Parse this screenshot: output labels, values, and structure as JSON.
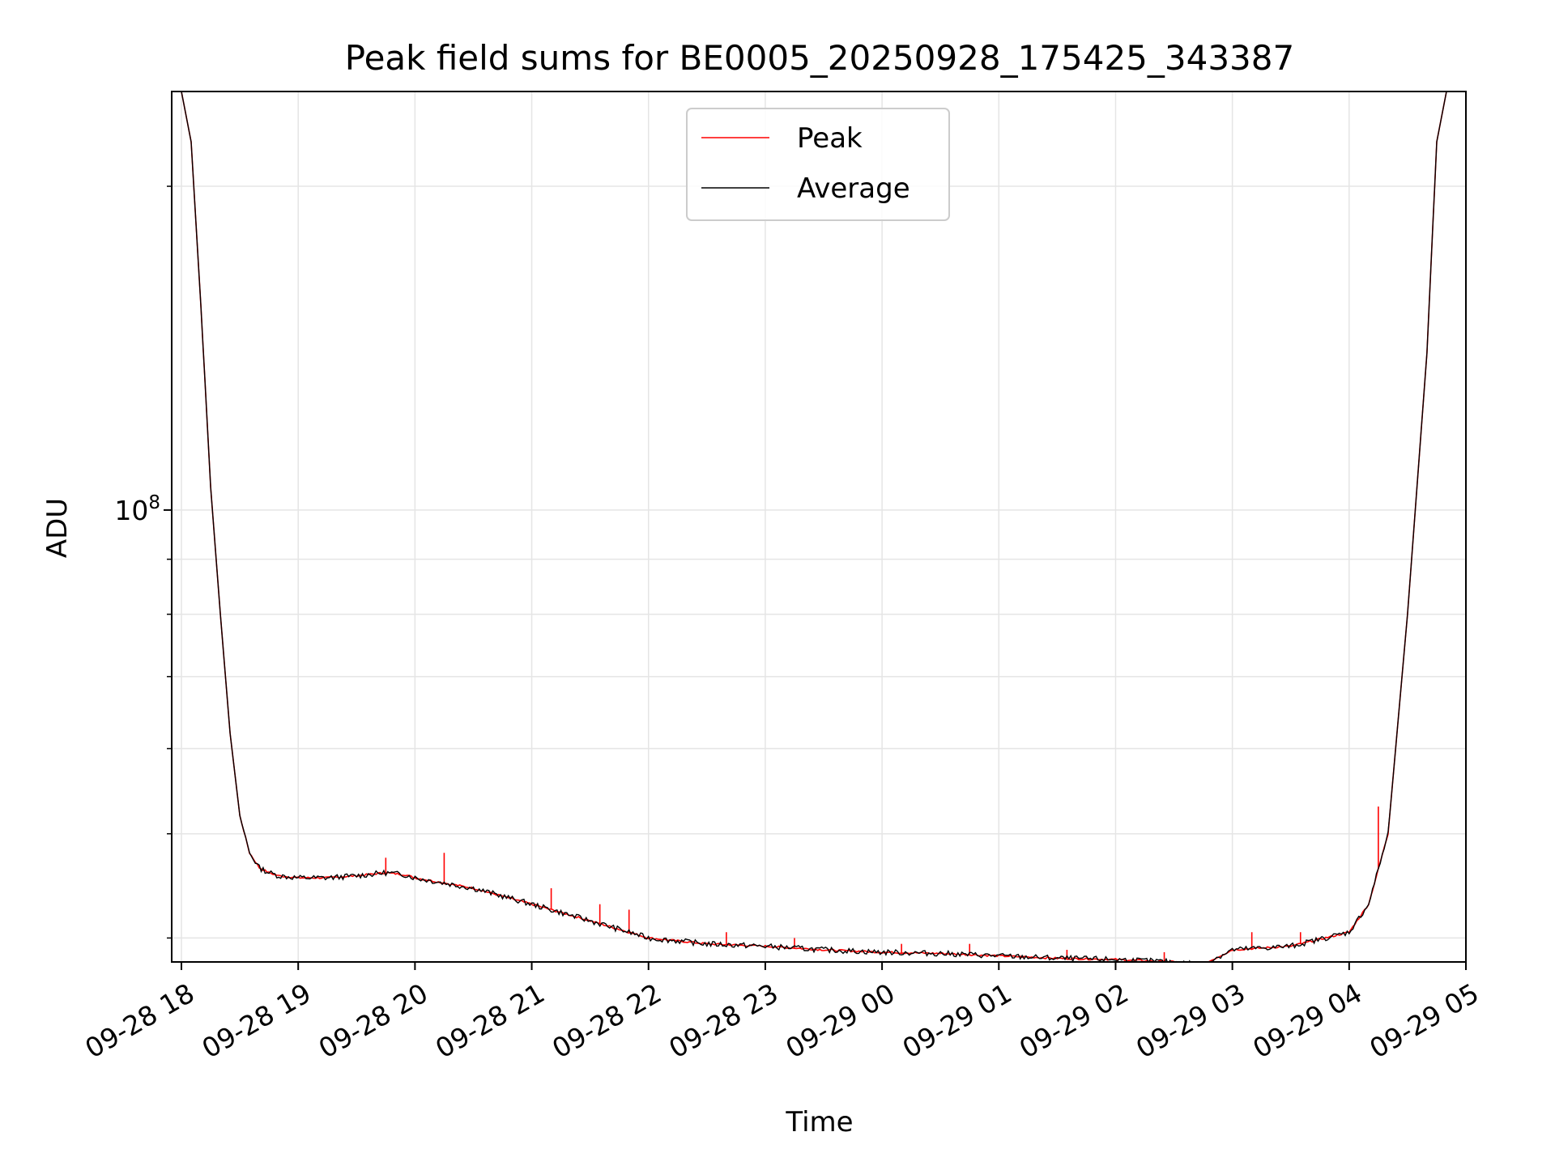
{
  "chart_data": {
    "type": "line",
    "title": "Peak field sums for BE0005_20250928_175425_343387",
    "xlabel": "Time",
    "ylabel": "ADU",
    "y_scale": "log",
    "ylim": [
      38000000.0,
      245000000.0
    ],
    "xlim": [
      "2025-09-28 17:55",
      "2025-09-29 05:00"
    ],
    "grid": true,
    "legend_position": "upper center",
    "x_ticks": [
      "09-28 18",
      "09-28 19",
      "09-28 20",
      "09-28 21",
      "09-28 22",
      "09-28 23",
      "09-29 00",
      "09-29 01",
      "09-29 02",
      "09-29 03",
      "09-29 04",
      "09-29 05"
    ],
    "y_tick_major": {
      "base": "10",
      "exponent": "8",
      "value": 100000000.0
    },
    "y_tick_minor": [
      40000000.0,
      50000000.0,
      60000000.0,
      70000000.0,
      80000000.0,
      90000000.0,
      200000000.0
    ],
    "series": [
      {
        "name": "Peak",
        "color": "#ff0000",
        "x": [
          "2025-09-28 18:00",
          "2025-09-28 18:05",
          "2025-09-28 18:10",
          "2025-09-28 18:15",
          "2025-09-28 18:20",
          "2025-09-28 18:25",
          "2025-09-28 18:30",
          "2025-09-28 18:35",
          "2025-09-28 18:40",
          "2025-09-28 18:45",
          "2025-09-28 18:50",
          "2025-09-28 19:00",
          "2025-09-28 19:15",
          "2025-09-28 19:30",
          "2025-09-28 19:45",
          "2025-09-28 19:55",
          "2025-09-28 20:00",
          "2025-09-28 20:30",
          "2025-09-28 21:00",
          "2025-09-28 21:30",
          "2025-09-28 22:00",
          "2025-09-28 22:30",
          "2025-09-28 23:00",
          "2025-09-28 23:30",
          "2025-09-29 00:00",
          "2025-09-29 00:30",
          "2025-09-29 01:00",
          "2025-09-29 01:30",
          "2025-09-29 02:00",
          "2025-09-29 02:30",
          "2025-09-29 02:45",
          "2025-09-29 03:00",
          "2025-09-29 03:30",
          "2025-09-29 04:00",
          "2025-09-29 04:10",
          "2025-09-29 04:20",
          "2025-09-29 04:30",
          "2025-09-29 04:40",
          "2025-09-29 04:45",
          "2025-09-29 04:50"
        ],
        "values": [
          245000000.0,
          220000000.0,
          155000000.0,
          105000000.0,
          80000000.0,
          62000000.0,
          52000000.0,
          48000000.0,
          46500000.0,
          46000000.0,
          45700000.0,
          45500000.0,
          45500000.0,
          45700000.0,
          46000000.0,
          45800000.0,
          45500000.0,
          44500000.0,
          43000000.0,
          41500000.0,
          40000000.0,
          39500000.0,
          39300000.0,
          39000000.0,
          38800000.0,
          38700000.0,
          38500000.0,
          38300000.0,
          38200000.0,
          38000000.0,
          37800000.0,
          39000000.0,
          39300000.0,
          40500000.0,
          43000000.0,
          50000000.0,
          80000000.0,
          140000000.0,
          220000000.0,
          245000000.0
        ],
        "spikes": [
          {
            "t": "2025-09-28 19:45",
            "value": 47500000.0
          },
          {
            "t": "2025-09-28 20:15",
            "value": 48000000.0
          },
          {
            "t": "2025-09-28 21:10",
            "value": 44500000.0
          },
          {
            "t": "2025-09-28 21:35",
            "value": 43000000.0
          },
          {
            "t": "2025-09-28 21:50",
            "value": 42500000.0
          },
          {
            "t": "2025-09-28 22:40",
            "value": 40500000.0
          },
          {
            "t": "2025-09-28 23:15",
            "value": 40000000.0
          },
          {
            "t": "2025-09-29 00:10",
            "value": 39500000.0
          },
          {
            "t": "2025-09-29 00:45",
            "value": 39500000.0
          },
          {
            "t": "2025-09-29 01:35",
            "value": 39000000.0
          },
          {
            "t": "2025-09-29 02:25",
            "value": 38800000.0
          },
          {
            "t": "2025-09-29 03:10",
            "value": 40500000.0
          },
          {
            "t": "2025-09-29 03:35",
            "value": 40500000.0
          },
          {
            "t": "2025-09-29 04:15",
            "value": 53000000.0
          }
        ]
      },
      {
        "name": "Average",
        "color": "#000000",
        "x": [
          "2025-09-28 18:00",
          "2025-09-28 18:05",
          "2025-09-28 18:10",
          "2025-09-28 18:15",
          "2025-09-28 18:20",
          "2025-09-28 18:25",
          "2025-09-28 18:30",
          "2025-09-28 18:35",
          "2025-09-28 18:40",
          "2025-09-28 18:45",
          "2025-09-28 18:50",
          "2025-09-28 19:00",
          "2025-09-28 19:15",
          "2025-09-28 19:30",
          "2025-09-28 19:45",
          "2025-09-28 19:55",
          "2025-09-28 20:00",
          "2025-09-28 20:30",
          "2025-09-28 21:00",
          "2025-09-28 21:30",
          "2025-09-28 22:00",
          "2025-09-28 22:30",
          "2025-09-28 23:00",
          "2025-09-28 23:30",
          "2025-09-29 00:00",
          "2025-09-29 00:30",
          "2025-09-29 01:00",
          "2025-09-29 01:30",
          "2025-09-29 02:00",
          "2025-09-29 02:30",
          "2025-09-29 02:45",
          "2025-09-29 03:00",
          "2025-09-29 03:30",
          "2025-09-29 04:00",
          "2025-09-29 04:10",
          "2025-09-29 04:20",
          "2025-09-29 04:30",
          "2025-09-29 04:40",
          "2025-09-29 04:45",
          "2025-09-29 04:50"
        ],
        "values": [
          245000000.0,
          220000000.0,
          155000000.0,
          105000000.0,
          80000000.0,
          62000000.0,
          52000000.0,
          48000000.0,
          46500000.0,
          46000000.0,
          45700000.0,
          45500000.0,
          45500000.0,
          45700000.0,
          46000000.0,
          45800000.0,
          45500000.0,
          44500000.0,
          43000000.0,
          41500000.0,
          40000000.0,
          39500000.0,
          39300000.0,
          39000000.0,
          38800000.0,
          38700000.0,
          38500000.0,
          38300000.0,
          38200000.0,
          38000000.0,
          37800000.0,
          39000000.0,
          39300000.0,
          40500000.0,
          43000000.0,
          50000000.0,
          80000000.0,
          140000000.0,
          220000000.0,
          245000000.0
        ]
      }
    ]
  }
}
